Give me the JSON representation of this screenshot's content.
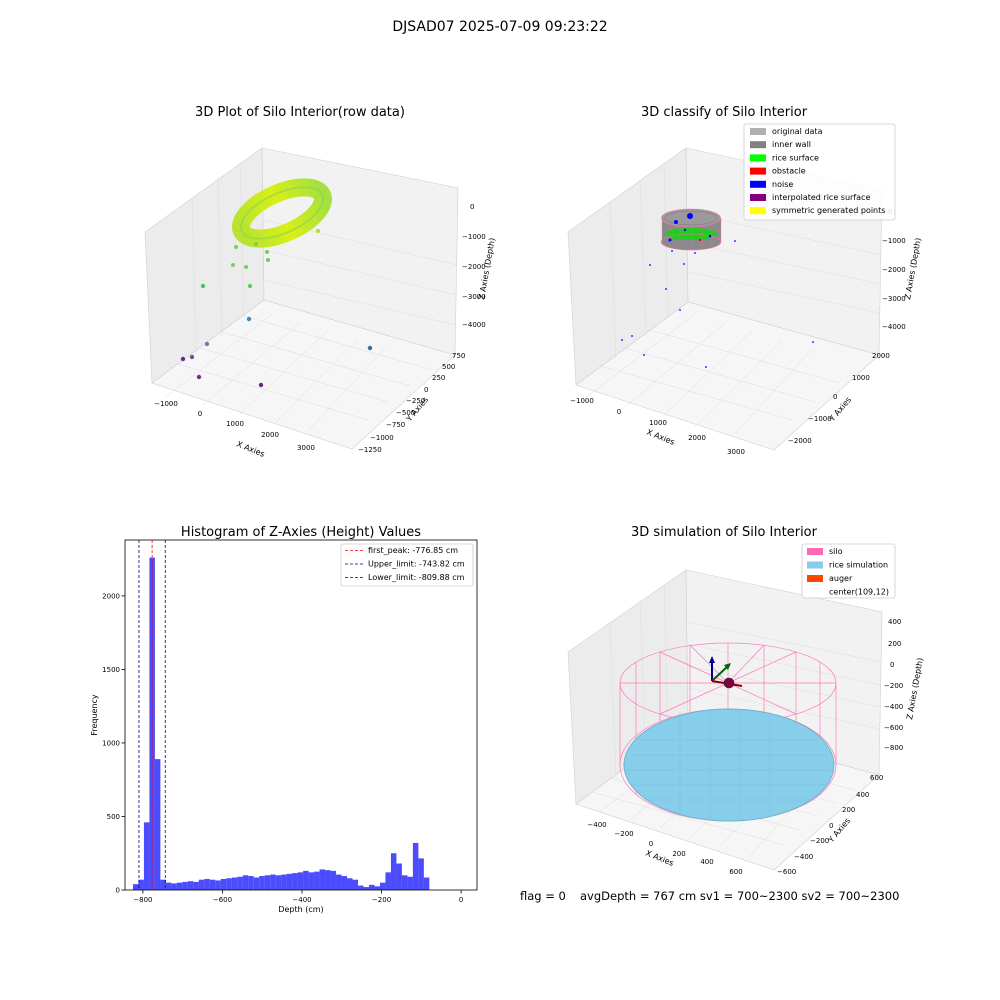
{
  "figure": {
    "suptitle": "DJSAD07 2025-07-09 09:23:22",
    "footer": {
      "flag": "flag = 0",
      "avg": "avgDepth = 767 cm  sv1 = 700~2300  sv2 = 700~2300"
    }
  },
  "panels": {
    "raw": {
      "title": "3D Plot of Silo Interior(row data)",
      "xlabel": "X Axies",
      "ylabel": "Y Axies",
      "zlabel": "Z Axies (Depth)",
      "xticks": [
        "−1000",
        "0",
        "1000",
        "2000",
        "3000"
      ],
      "yticks": [
        "750",
        "500",
        "250",
        "0",
        "−250",
        "−500",
        "−750",
        "−1000",
        "−1250"
      ],
      "zticks": [
        "0",
        "−1000",
        "−2000",
        "−3000",
        "−4000"
      ]
    },
    "classify": {
      "title": "3D classify of Silo Interior",
      "xlabel": "X Axies",
      "ylabel": "Y Axies",
      "zlabel": "Z Axies (Depth)",
      "xticks": [
        "−1000",
        "0",
        "1000",
        "2000",
        "3000"
      ],
      "yticks": [
        "2000",
        "1000",
        "0",
        "−1000",
        "−2000"
      ],
      "zticks": [
        "0",
        "−1000",
        "−2000",
        "−3000",
        "−4000"
      ],
      "legend": [
        {
          "label": "original data",
          "color": "#b0b0b0"
        },
        {
          "label": "inner wall",
          "color": "#808080"
        },
        {
          "label": "rice surface",
          "color": "#00ff00"
        },
        {
          "label": "obstacle",
          "color": "#ff0000"
        },
        {
          "label": "noise",
          "color": "#0000ff"
        },
        {
          "label": "interpolated rice surface",
          "color": "#800080"
        },
        {
          "label": "symmetric generated points",
          "color": "#ffff00"
        }
      ]
    },
    "histogram": {
      "title": "Histogram of Z-Axies (Height) Values"
    },
    "simulation": {
      "title": "3D simulation of Silo Interior",
      "xlabel": "X Axies",
      "ylabel": "Y Axies",
      "zlabel": "Z Axies (Depth)",
      "xticks": [
        "−400",
        "−200",
        "0",
        "200",
        "400",
        "600"
      ],
      "yticks": [
        "600",
        "400",
        "200",
        "0",
        "−200",
        "−400",
        "−600"
      ],
      "zticks": [
        "400",
        "200",
        "0",
        "−200",
        "−400",
        "−600",
        "−800"
      ],
      "legend": [
        {
          "label": "silo",
          "color": "#ff69b4"
        },
        {
          "label": "rice simulation",
          "color": "#87ceeb"
        },
        {
          "label": "auger",
          "color": "#ff4500"
        },
        {
          "label": "center(109,12)",
          "color": ""
        }
      ]
    }
  },
  "chart_data": [
    {
      "type": "histogram",
      "title": "Histogram of Z-Axies (Height) Values",
      "xlabel": "Depth (cm)",
      "ylabel": "Frequency",
      "xlim": [
        -845,
        40
      ],
      "ylim": [
        0,
        2380
      ],
      "xticks": [
        -800,
        -600,
        -400,
        -200,
        0
      ],
      "xtick_labels": [
        "−800",
        "−600",
        "−400",
        "−200",
        "0"
      ],
      "yticks": [
        0,
        500,
        1000,
        1500,
        2000
      ],
      "bar_color": "#0000ff",
      "bar_alpha": 0.7,
      "bin_start": -825,
      "bin_width": 13.8,
      "values": [
        40,
        70,
        460,
        2260,
        890,
        70,
        50,
        45,
        50,
        55,
        60,
        55,
        70,
        75,
        70,
        65,
        75,
        80,
        85,
        90,
        100,
        95,
        85,
        95,
        100,
        105,
        100,
        105,
        110,
        115,
        120,
        130,
        120,
        125,
        140,
        135,
        130,
        105,
        95,
        80,
        70,
        30,
        20,
        35,
        25,
        50,
        120,
        250,
        180,
        100,
        90,
        320,
        215,
        85
      ],
      "lines": [
        {
          "label": "first_peak: -776.85 cm",
          "x": -776.85,
          "color": "#ff0000"
        },
        {
          "label": "Upper_limit: -743.82 cm",
          "x": -743.82,
          "color": "#00008b"
        },
        {
          "label": "Lower_limit: -809.88 cm",
          "x": -809.88,
          "color": "#00008b"
        }
      ],
      "grid": false,
      "legend_position": "top-right"
    }
  ]
}
